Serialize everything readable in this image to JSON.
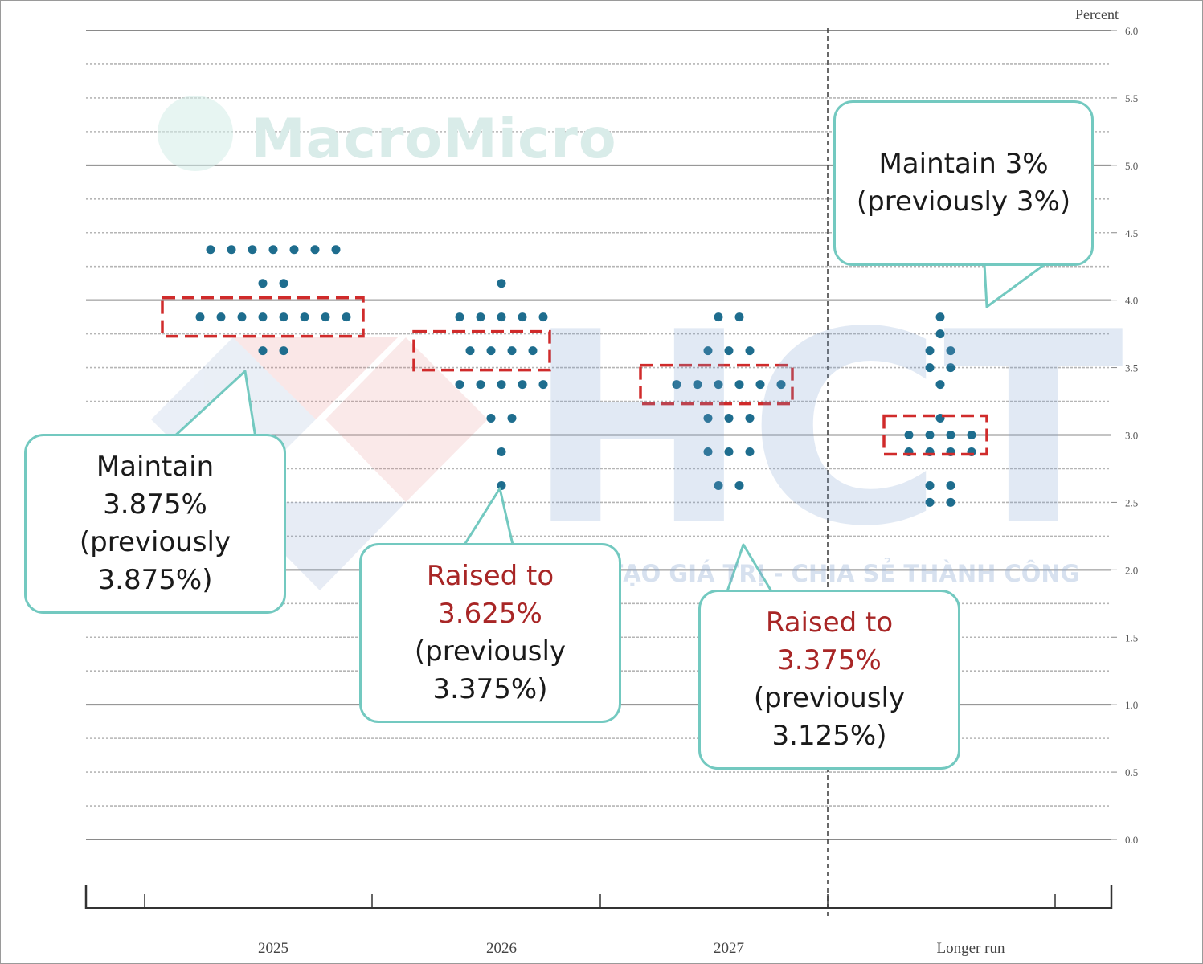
{
  "chart_data": {
    "type": "scatter",
    "title": "",
    "ylabel": "Percent",
    "xlabel": "",
    "ylim": [
      0,
      6
    ],
    "yticks": [
      "0.0",
      "0.5",
      "1.0",
      "1.5",
      "2.0",
      "2.5",
      "3.0",
      "3.5",
      "4.0",
      "4.5",
      "5.0",
      "5.5",
      "6.0"
    ],
    "categories": [
      "2025",
      "2026",
      "2027",
      "Longer run"
    ],
    "dots": [
      {
        "category": "2025",
        "rows": [
          [
            4.375,
            7
          ],
          [
            4.125,
            2
          ],
          [
            3.875,
            8
          ],
          [
            3.625,
            2
          ]
        ]
      },
      {
        "category": "2026",
        "rows": [
          [
            4.125,
            1
          ],
          [
            3.875,
            5
          ],
          [
            3.625,
            4
          ],
          [
            3.375,
            5
          ],
          [
            3.125,
            2
          ],
          [
            2.875,
            1
          ],
          [
            2.625,
            1
          ]
        ]
      },
      {
        "category": "2027",
        "rows": [
          [
            3.875,
            2
          ],
          [
            3.625,
            3
          ],
          [
            3.375,
            6
          ],
          [
            3.125,
            3
          ],
          [
            2.875,
            3
          ],
          [
            2.625,
            2
          ]
        ]
      },
      {
        "category": "Longer run",
        "rows": [
          [
            3.875,
            1
          ],
          [
            3.75,
            1
          ],
          [
            3.625,
            2
          ],
          [
            3.5,
            2
          ],
          [
            3.375,
            1
          ],
          [
            3.125,
            1
          ],
          [
            3.0,
            4
          ],
          [
            2.875,
            4
          ],
          [
            2.625,
            2
          ],
          [
            2.5,
            2
          ]
        ]
      }
    ],
    "highlights": [
      {
        "category": "2025",
        "value": 3.875
      },
      {
        "category": "2026",
        "value": 3.625
      },
      {
        "category": "2027",
        "value": 3.375
      },
      {
        "category": "Longer run",
        "value": 3.0
      }
    ],
    "grid": true,
    "dot_color": "#1e6d8e",
    "highlight_color": "#d02b2b"
  },
  "callouts": {
    "c2025": {
      "l1": "Maintain",
      "l2": "3.875%",
      "l3": "(previously",
      "l4": "3.875%)"
    },
    "c2026": {
      "l1": "Raised to",
      "l2": "3.625%",
      "l3": "(previously",
      "l4": "3.375%)"
    },
    "c2027": {
      "l1": "Raised to",
      "l2": "3.375%",
      "l3": "(previously",
      "l4": "3.125%)"
    },
    "clong": {
      "l1": "Maintain 3%",
      "l2": "(previously 3%)"
    }
  },
  "watermarks": {
    "macromicro": "MacroMicro",
    "hct": "HCT",
    "hct_tagline": "KIẾN TẠO GIÁ TRỊ - CHIA SẺ THÀNH CÔNG"
  },
  "colors": {
    "callout_border": "#73c9c0",
    "emphasis_text": "#a82626"
  }
}
